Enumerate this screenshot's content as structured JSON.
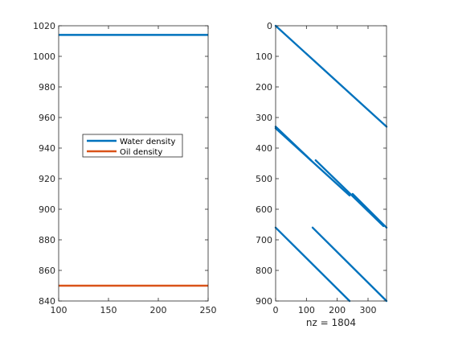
{
  "chart_data": [
    {
      "type": "line",
      "xlim": [
        100,
        250
      ],
      "ylim": [
        840,
        1020
      ],
      "xticks": [
        "100",
        "150",
        "200",
        "250"
      ],
      "yticks": [
        "840",
        "860",
        "880",
        "900",
        "920",
        "940",
        "960",
        "980",
        "1000",
        "1020"
      ],
      "series": [
        {
          "name": "Water density",
          "color": "#0072bd",
          "x": [
            100,
            250
          ],
          "y": [
            1014,
            1014
          ]
        },
        {
          "name": "Oil density",
          "color": "#d95319",
          "x": [
            100,
            250
          ],
          "y": [
            850,
            850
          ]
        }
      ],
      "legend_position": "center-left",
      "grid": false
    },
    {
      "type": "scatter",
      "subtype": "sparsity-pattern",
      "xlabel": "nz = 1804",
      "xlim": [
        0,
        360
      ],
      "ylim_reversed": [
        900,
        0
      ],
      "xticks": [
        "0",
        "100",
        "200",
        "300"
      ],
      "yticks": [
        "0",
        "100",
        "200",
        "300",
        "400",
        "500",
        "600",
        "700",
        "800",
        "900"
      ],
      "color": "#0072bd",
      "segments": [
        {
          "x": [
            0,
            360
          ],
          "y": [
            0,
            330
          ]
        },
        {
          "x": [
            0,
            115
          ],
          "y": [
            330,
            440
          ]
        },
        {
          "x": [
            0,
            240
          ],
          "y": [
            335,
            555
          ]
        },
        {
          "x": [
            130,
            350
          ],
          "y": [
            440,
            655
          ]
        },
        {
          "x": [
            250,
            360
          ],
          "y": [
            550,
            660
          ]
        },
        {
          "x": [
            0,
            240
          ],
          "y": [
            660,
            900
          ]
        },
        {
          "x": [
            120,
            360
          ],
          "y": [
            660,
            900
          ]
        }
      ],
      "grid": false
    }
  ]
}
